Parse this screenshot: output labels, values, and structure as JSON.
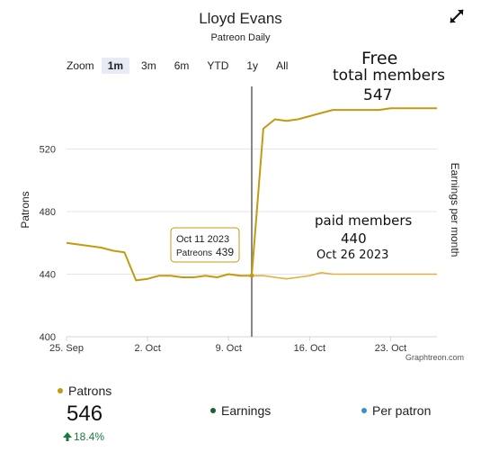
{
  "header": {
    "title": "Lloyd Evans",
    "subtitle": "Patreon Daily"
  },
  "zoom": {
    "label": "Zoom",
    "buttons": [
      "1m",
      "3m",
      "6m",
      "YTD",
      "1y",
      "All"
    ],
    "active": "1m"
  },
  "chart_data": {
    "type": "line",
    "x_tick_labels": [
      "25. Sep",
      "2. Oct",
      "9. Oct",
      "16. Oct",
      "23. Oct"
    ],
    "y_ticks": [
      400,
      440,
      480,
      520
    ],
    "ylabel": "Patrons",
    "ylabel_right": "Earnings per month",
    "ylim": [
      400,
      560
    ],
    "xlim": [
      "2023-09-25",
      "2023-10-27"
    ],
    "grid": "horizontal",
    "series": [
      {
        "name": "Patrons",
        "color": "#c49a10",
        "x": [
          "2023-09-25",
          "2023-09-26",
          "2023-09-27",
          "2023-09-28",
          "2023-09-29",
          "2023-09-30",
          "2023-10-01",
          "2023-10-02",
          "2023-10-03",
          "2023-10-04",
          "2023-10-05",
          "2023-10-06",
          "2023-10-07",
          "2023-10-08",
          "2023-10-09",
          "2023-10-10",
          "2023-10-11",
          "2023-10-12",
          "2023-10-13",
          "2023-10-14",
          "2023-10-15",
          "2023-10-16",
          "2023-10-17",
          "2023-10-18",
          "2023-10-19",
          "2023-10-20",
          "2023-10-21",
          "2023-10-22",
          "2023-10-23",
          "2023-10-24",
          "2023-10-25",
          "2023-10-26",
          "2023-10-27"
        ],
        "values": [
          460,
          459,
          458,
          457,
          455,
          454,
          436,
          437,
          439,
          439,
          438,
          438,
          439,
          438,
          440,
          439,
          439,
          533,
          539,
          538,
          539,
          541,
          543,
          545,
          545,
          545,
          545,
          545,
          546,
          546,
          546,
          546,
          546
        ]
      },
      {
        "name": "paid members",
        "color": "#e0b040",
        "x": [
          "2023-10-11",
          "2023-10-12",
          "2023-10-13",
          "2023-10-14",
          "2023-10-15",
          "2023-10-16",
          "2023-10-17",
          "2023-10-18",
          "2023-10-19",
          "2023-10-20",
          "2023-10-21",
          "2023-10-22",
          "2023-10-23",
          "2023-10-24",
          "2023-10-25",
          "2023-10-26",
          "2023-10-27"
        ],
        "values": [
          439,
          439,
          438,
          437,
          438,
          439,
          441,
          440,
          440,
          440,
          440,
          440,
          440,
          440,
          440,
          440,
          440
        ]
      }
    ],
    "crosshair": {
      "x": "2023-10-11"
    },
    "tooltip": {
      "date": "Oct 11  2023",
      "label": "Patreons",
      "value": "439"
    },
    "annotations": {
      "free_title": "Free",
      "free_subtitle": "total members",
      "free_value": "547",
      "paid_title": "paid members",
      "paid_value": "440",
      "paid_date": "Oct 26   2023"
    },
    "credit": "Graphtreon.com"
  },
  "legend": {
    "patrons_label": "Patrons",
    "patrons_color": "#c49a10",
    "patrons_value": "546",
    "patrons_change": "18.4%",
    "earnings_label": "Earnings",
    "earnings_color": "#1e5e3a",
    "per_patron_label": "Per patron",
    "per_patron_color": "#3b8fc9"
  }
}
